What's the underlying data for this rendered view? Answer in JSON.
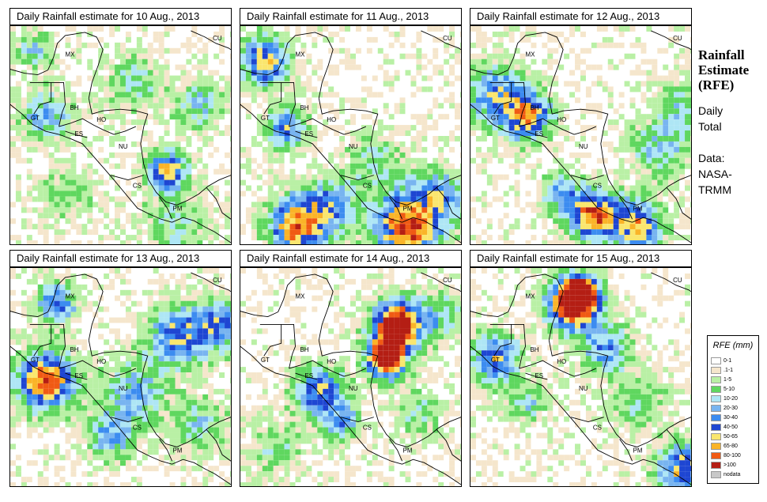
{
  "side": {
    "title_lines": [
      "Rainfall",
      "Estimate",
      "(RFE)"
    ],
    "daily_lines": [
      "Daily",
      "Total"
    ],
    "data_lines": [
      "Data:",
      "NASA-",
      "TRMM"
    ]
  },
  "panels": [
    {
      "title": "Daily Rainfall estimate for  10 Aug., 2013"
    },
    {
      "title": "Daily Rainfall estimate for  11 Aug., 2013"
    },
    {
      "title": "Daily Rainfall estimate for  12 Aug., 2013"
    },
    {
      "title": "Daily Rainfall estimate for  13 Aug., 2013"
    },
    {
      "title": "Daily Rainfall estimate for  14 Aug., 2013"
    },
    {
      "title": "Daily Rainfall estimate for  15 Aug., 2013"
    }
  ],
  "country_labels": [
    "MX",
    "BH",
    "GT",
    "HO",
    "ES",
    "NU",
    "CS",
    "PM",
    "CU"
  ],
  "legend": {
    "title": "RFE (mm)",
    "items": [
      {
        "label": "0-1",
        "color": "#ffffff"
      },
      {
        "label": ".1-1",
        "color": "#f5e6cc"
      },
      {
        "label": "1-5",
        "color": "#b9f0a5"
      },
      {
        "label": "5-10",
        "color": "#5fd75f"
      },
      {
        "label": "10-20",
        "color": "#aee6f5"
      },
      {
        "label": "20-30",
        "color": "#78b4f0"
      },
      {
        "label": "30-40",
        "color": "#3c8cf0"
      },
      {
        "label": "40-50",
        "color": "#1e46d2"
      },
      {
        "label": "50-65",
        "color": "#fae66e"
      },
      {
        "label": "65-80",
        "color": "#fab428"
      },
      {
        "label": "80-100",
        "color": "#f05a14"
      },
      {
        "label": ">100",
        "color": "#b41e14"
      },
      {
        "label": "nodata",
        "color": "#c8c8c8"
      }
    ]
  }
}
